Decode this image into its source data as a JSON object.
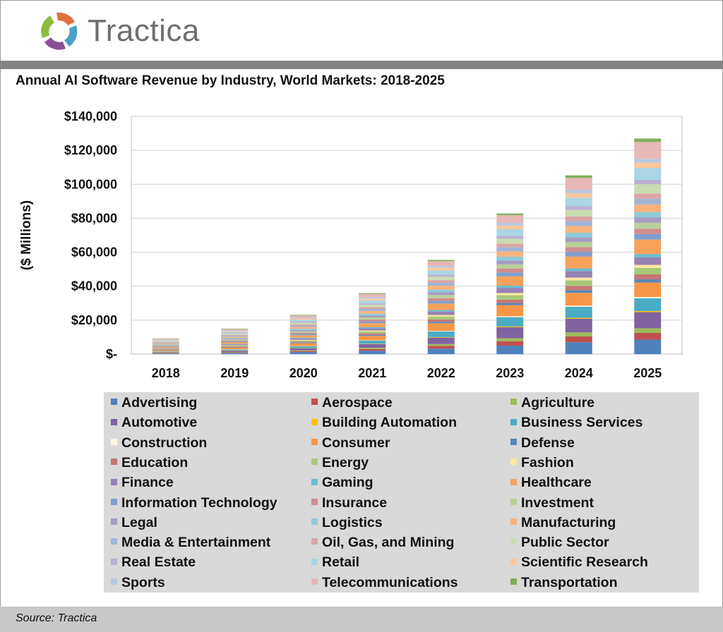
{
  "brand": {
    "name": "Tractica"
  },
  "source": "Source: Tractica",
  "colors": {
    "Advertising": "#4f81bd",
    "Aerospace": "#c0504d",
    "Agriculture": "#9bbb59",
    "Automotive": "#8064a2",
    "Building Automation": "#ffc000",
    "Business Services": "#4bacc6",
    "Construction": "#fdf5e0",
    "Consumer": "#f79646",
    "Defense": "#5b87b9",
    "Education": "#c57675",
    "Energy": "#a8c879",
    "Fashion": "#fce8a3",
    "Finance": "#9581b4",
    "Gaming": "#6cbcd0",
    "Healthcare": "#f7a25c",
    "Information Technology": "#7f9fcc",
    "Insurance": "#cf8e8d",
    "Investment": "#b8d19a",
    "Legal": "#a79bc0",
    "Logistics": "#8fcbdb",
    "Manufacturing": "#f8b37c",
    "Media & Entertainment": "#9fb5d8",
    "Oil, Gas, and Mining": "#d8a6a5",
    "Public Sector": "#c9dcb2",
    "Real Estate": "#bbb0d0",
    "Retail": "#aad5e2",
    "Scientific Research": "#f9c79f",
    "Sports": "#b7c9e2",
    "Telecommunications": "#e6b8b7",
    "Transportation": "#7fae5a"
  },
  "chart_data": {
    "type": "bar",
    "stacked": true,
    "title": "Annual AI Software Revenue by Industry, World Markets: 2018-2025",
    "ylabel": "($ Millions)",
    "ylim": [
      0,
      140000
    ],
    "yticks": [
      "$-",
      "$20,000",
      "$40,000",
      "$60,000",
      "$80,000",
      "$100,000",
      "$120,000",
      "$140,000"
    ],
    "grid": true,
    "legend_position": "bottom",
    "categories": [
      "2018",
      "2019",
      "2020",
      "2021",
      "2022",
      "2023",
      "2024",
      "2025"
    ],
    "series": [
      {
        "name": "Advertising",
        "values": [
          400,
          700,
          1200,
          2000,
          3200,
          5000,
          7000,
          8500
        ]
      },
      {
        "name": "Aerospace",
        "values": [
          200,
          350,
          600,
          1000,
          1600,
          2600,
          3500,
          4000
        ]
      },
      {
        "name": "Agriculture",
        "values": [
          150,
          250,
          400,
          700,
          1100,
          1700,
          2300,
          2700
        ]
      },
      {
        "name": "Automotive",
        "values": [
          500,
          800,
          1300,
          2200,
          3800,
          6500,
          8000,
          9500
        ]
      },
      {
        "name": "Building Automation",
        "values": [
          50,
          80,
          130,
          200,
          300,
          450,
          550,
          650
        ]
      },
      {
        "name": "Business Services",
        "values": [
          400,
          650,
          1000,
          1800,
          3300,
          5500,
          6500,
          7500
        ]
      },
      {
        "name": "Construction",
        "values": [
          50,
          80,
          130,
          200,
          350,
          550,
          700,
          800
        ]
      },
      {
        "name": "Consumer",
        "values": [
          600,
          1000,
          1600,
          2600,
          4500,
          6500,
          7500,
          8500
        ]
      },
      {
        "name": "Defense",
        "values": [
          150,
          250,
          400,
          600,
          900,
          1300,
          1600,
          1900
        ]
      },
      {
        "name": "Education",
        "values": [
          200,
          350,
          550,
          900,
          1400,
          2000,
          2500,
          2900
        ]
      },
      {
        "name": "Energy",
        "values": [
          300,
          450,
          700,
          1100,
          1700,
          2600,
          3300,
          3800
        ]
      },
      {
        "name": "Fashion",
        "values": [
          150,
          250,
          400,
          600,
          900,
          1300,
          1600,
          1800
        ]
      },
      {
        "name": "Finance",
        "values": [
          350,
          550,
          800,
          1300,
          2000,
          3000,
          3800,
          4500
        ]
      },
      {
        "name": "Gaming",
        "values": [
          150,
          250,
          400,
          600,
          900,
          1300,
          1600,
          1900
        ]
      },
      {
        "name": "Healthcare",
        "values": [
          600,
          1000,
          1500,
          2400,
          3800,
          5500,
          7000,
          8500
        ]
      },
      {
        "name": "Information Technology",
        "values": [
          300,
          500,
          750,
          1100,
          1600,
          2300,
          2800,
          3200
        ]
      },
      {
        "name": "Insurance",
        "values": [
          300,
          500,
          750,
          1100,
          1600,
          2300,
          2800,
          3200
        ]
      },
      {
        "name": "Investment",
        "values": [
          350,
          550,
          800,
          1200,
          1800,
          2500,
          3000,
          3500
        ]
      },
      {
        "name": "Legal",
        "values": [
          300,
          500,
          750,
          1100,
          1600,
          2200,
          2700,
          3200
        ]
      },
      {
        "name": "Logistics",
        "values": [
          300,
          500,
          750,
          1100,
          1600,
          2200,
          2700,
          3100
        ]
      },
      {
        "name": "Manufacturing",
        "values": [
          450,
          700,
          1100,
          1600,
          2300,
          3200,
          4000,
          4500
        ]
      },
      {
        "name": "Media & Entertainment",
        "values": [
          350,
          550,
          800,
          1200,
          1700,
          2400,
          2900,
          3300
        ]
      },
      {
        "name": "Oil, Gas, and Mining",
        "values": [
          300,
          500,
          750,
          1100,
          1600,
          2200,
          2700,
          3100
        ]
      },
      {
        "name": "Public Sector",
        "values": [
          400,
          650,
          950,
          1400,
          2000,
          2800,
          3800,
          5500
        ]
      },
      {
        "name": "Real Estate",
        "values": [
          250,
          400,
          600,
          900,
          1300,
          1800,
          2200,
          2600
        ]
      },
      {
        "name": "Retail",
        "values": [
          450,
          700,
          1100,
          1600,
          2400,
          3800,
          5000,
          7000
        ]
      },
      {
        "name": "Scientific Research",
        "values": [
          300,
          500,
          750,
          1100,
          1600,
          2200,
          2700,
          3100
        ]
      },
      {
        "name": "Sports",
        "values": [
          200,
          350,
          500,
          800,
          1100,
          1600,
          2000,
          2200
        ]
      },
      {
        "name": "Telecommunications",
        "values": [
          500,
          800,
          1200,
          1900,
          2800,
          4500,
          7000,
          10000
        ]
      },
      {
        "name": "Transportation",
        "values": [
          200,
          300,
          400,
          500,
          700,
          1000,
          1500,
          2000
        ]
      }
    ]
  }
}
